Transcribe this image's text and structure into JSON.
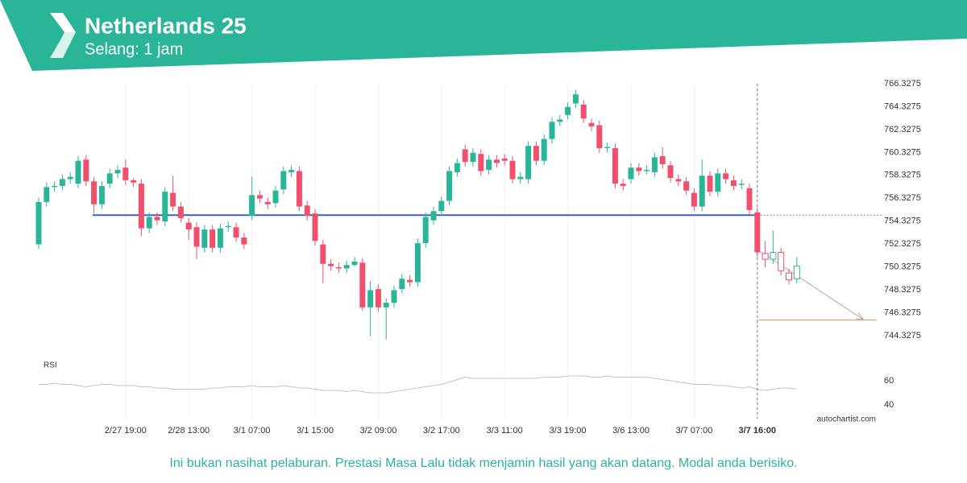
{
  "header": {
    "title": "Netherlands 25",
    "subtitle": "Selang: 1 jam"
  },
  "chart_data": {
    "type": "candlestick",
    "categories": [
      null,
      null,
      null,
      null,
      null,
      null,
      null,
      null,
      null,
      null,
      null,
      "2/27 19:00",
      null,
      null,
      null,
      null,
      null,
      null,
      null,
      "2/28 13:00",
      null,
      null,
      null,
      null,
      null,
      null,
      null,
      "3/1 07:00",
      null,
      null,
      null,
      null,
      null,
      null,
      null,
      "3/1 15:00",
      null,
      null,
      null,
      null,
      null,
      null,
      null,
      "3/2 09:00",
      null,
      null,
      null,
      null,
      null,
      null,
      null,
      "3/2 17:00",
      null,
      null,
      null,
      null,
      null,
      null,
      null,
      "3/3 11:00",
      null,
      null,
      null,
      null,
      null,
      null,
      null,
      "3/3 19:00",
      null,
      null,
      null,
      null,
      null,
      null,
      null,
      "3/6 13:00",
      null,
      null,
      null,
      null,
      null,
      null,
      null,
      "3/7 07:00",
      null,
      null,
      null,
      null,
      null,
      null,
      null,
      "3/7 16:00",
      null,
      null,
      null,
      null,
      null
    ],
    "open": [
      752.3,
      756.0,
      757.3,
      757.4,
      758.0,
      757.6,
      759.7,
      757.8,
      755.8,
      757.6,
      758.5,
      759.0,
      757.9,
      757.6,
      753.7,
      754.7,
      754.3,
      756.8,
      755.6,
      754.2,
      753.8,
      752.0,
      753.6,
      752.0,
      753.8,
      753.8,
      752.9,
      754.8,
      756.6,
      756.0,
      755.9,
      757.1,
      758.6,
      758.7,
      755.7,
      755.0,
      752.3,
      750.6,
      750.3,
      750.2,
      750.5,
      750.7,
      746.8,
      748.4,
      746.8,
      747.2,
      748.4,
      749.2,
      749.0,
      752.4,
      754.4,
      755.2,
      756.1,
      758.6,
      760.6,
      759.5,
      760.2,
      758.8,
      759.7,
      759.8,
      759.6,
      758.0,
      758.0,
      760.9,
      759.6,
      761.5,
      763.0,
      763.6,
      764.6,
      764.5,
      762.9,
      762.7,
      760.7,
      760.7,
      757.6,
      758.0,
      759.0,
      758.7,
      758.6,
      760.0,
      759.2,
      758.0,
      757.8,
      756.8,
      755.6,
      758.3,
      756.9,
      758.5,
      757.9,
      757.5,
      757.2,
      755.1,
      751.5,
      751.0,
      751.6,
      749.8,
      749.3
    ],
    "high": [
      756.4,
      757.7,
      757.8,
      758.4,
      758.6,
      760.0,
      760.1,
      758.2,
      757.8,
      758.9,
      759.2,
      759.7,
      758.1,
      758.0,
      755.1,
      755.1,
      757.3,
      758.3,
      756.0,
      754.6,
      754.2,
      754.0,
      754.0,
      754.1,
      754.3,
      754.2,
      753.3,
      758.2,
      757.0,
      756.4,
      757.4,
      759.1,
      759.2,
      759.1,
      756.1,
      755.4,
      752.7,
      751.0,
      750.7,
      750.9,
      751.2,
      751.1,
      749.1,
      748.8,
      747.6,
      748.7,
      749.7,
      749.6,
      752.8,
      755.1,
      755.6,
      756.5,
      759.1,
      759.8,
      761.0,
      760.7,
      760.6,
      760.1,
      760.1,
      760.2,
      760.0,
      758.6,
      761.3,
      761.3,
      761.9,
      763.4,
      763.6,
      764.7,
      765.8,
      764.9,
      763.3,
      763.1,
      761.2,
      761.1,
      758.0,
      759.4,
      759.4,
      759.2,
      760.3,
      760.8,
      759.6,
      758.4,
      758.2,
      757.2,
      759.7,
      758.7,
      758.9,
      758.9,
      758.3,
      758.0,
      757.6,
      755.5,
      752.6,
      753.5,
      752.0,
      750.2,
      751.2
    ],
    "low": [
      751.9,
      755.6,
      756.9,
      757.0,
      757.6,
      757.2,
      757.4,
      755.0,
      755.4,
      757.2,
      758.1,
      757.5,
      757.3,
      753.0,
      753.3,
      754.0,
      753.9,
      755.2,
      754.2,
      752.7,
      751.0,
      751.6,
      751.6,
      751.6,
      753.4,
      752.5,
      751.9,
      754.4,
      755.9,
      755.4,
      755.5,
      756.7,
      758.2,
      755.2,
      754.4,
      752.2,
      748.9,
      750.0,
      749.8,
      749.8,
      750.4,
      746.5,
      744.3,
      746.4,
      744.0,
      746.8,
      748.0,
      748.6,
      748.6,
      752.0,
      754.0,
      754.8,
      755.7,
      758.2,
      759.1,
      759.1,
      758.3,
      758.4,
      759.0,
      759.2,
      757.6,
      757.6,
      757.6,
      759.2,
      759.2,
      761.1,
      762.6,
      763.2,
      764.2,
      762.9,
      762.2,
      760.3,
      760.3,
      757.2,
      757.0,
      757.6,
      758.3,
      758.4,
      758.2,
      758.9,
      757.7,
      757.4,
      756.6,
      755.2,
      755.2,
      756.5,
      756.5,
      757.6,
      757.0,
      757.1,
      754.9,
      751.2,
      750.3,
      750.6,
      749.6,
      748.8,
      748.9
    ],
    "close": [
      756.0,
      757.3,
      757.4,
      758.0,
      758.2,
      759.6,
      757.8,
      755.8,
      757.4,
      758.5,
      758.8,
      757.9,
      757.7,
      753.7,
      754.7,
      754.4,
      756.9,
      755.6,
      754.6,
      753.6,
      752.1,
      753.6,
      752.0,
      753.7,
      753.9,
      752.9,
      752.3,
      756.6,
      756.3,
      755.8,
      757.0,
      758.7,
      758.8,
      755.6,
      754.8,
      752.6,
      750.6,
      750.4,
      750.2,
      750.5,
      750.8,
      746.8,
      748.3,
      746.8,
      747.2,
      748.3,
      749.3,
      749.0,
      752.4,
      754.7,
      755.2,
      756.1,
      758.7,
      759.4,
      759.5,
      760.3,
      758.7,
      759.7,
      759.4,
      759.6,
      758.0,
      758.2,
      760.9,
      759.6,
      761.5,
      763.0,
      763.2,
      764.3,
      765.4,
      763.3,
      762.6,
      760.7,
      760.8,
      757.6,
      757.4,
      759.0,
      758.7,
      758.8,
      759.9,
      759.3,
      758.1,
      757.8,
      757.0,
      755.6,
      758.3,
      756.9,
      758.5,
      758.0,
      757.4,
      757.6,
      755.3,
      751.6,
      751.0,
      751.6,
      750.0,
      749.2,
      750.4
    ],
    "up_color": "#2bb598",
    "down_color": "#f0506e",
    "ylim": [
      744.3275,
      766.3275
    ],
    "yticks": [
      766.3275,
      764.3275,
      762.3275,
      760.3275,
      758.3275,
      756.3275,
      754.3275,
      752.3275,
      750.3275,
      748.3275,
      746.3275,
      744.3275
    ],
    "level": {
      "value": 754.85,
      "color": "#3c64ad"
    },
    "target": {
      "value": 745.7,
      "color": "#f0a070"
    },
    "rsi": {
      "label": "RSI",
      "color": "#c4c4c4",
      "ylim": [
        30,
        80
      ],
      "yticks": [
        40,
        60
      ],
      "values": [
        57,
        57,
        58,
        57,
        57,
        56,
        55,
        56,
        57,
        57,
        56,
        56,
        56,
        55,
        55,
        54,
        54,
        53,
        53,
        53,
        53,
        53,
        54,
        54,
        55,
        55,
        55,
        56,
        55,
        55,
        55,
        56,
        55,
        54,
        54,
        53,
        52,
        52,
        52,
        51,
        52,
        51,
        50,
        50,
        50,
        51,
        52,
        53,
        54,
        55,
        56,
        57,
        59,
        61,
        63,
        62,
        62,
        62,
        62,
        62,
        62,
        62,
        62,
        62,
        63,
        63,
        63,
        64,
        64,
        64,
        63,
        63,
        64,
        63,
        63,
        63,
        63,
        63,
        62,
        61,
        60,
        59,
        58,
        57,
        57,
        57,
        56,
        56,
        55,
        54,
        55,
        53,
        52,
        53,
        54,
        54,
        53
      ]
    }
  },
  "watermark": "autochartist.com",
  "footer": {
    "disclaimer": "Ini bukan nasihat pelaburan. Prestasi Masa Lalu tidak menjamin hasil yang akan datang. Modal anda berisiko."
  }
}
